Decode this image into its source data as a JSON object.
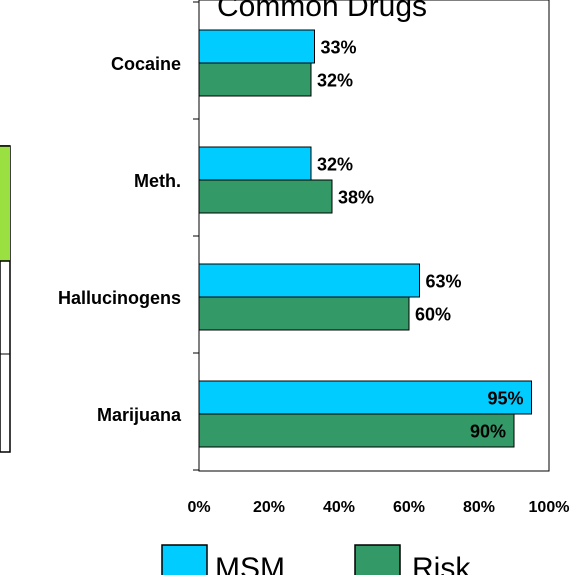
{
  "chart_data": {
    "type": "bar",
    "orientation": "horizontal",
    "title": "Common Drugs",
    "categories": [
      "Cocaine",
      "Meth.",
      "Hallucinogens",
      "Marijuana"
    ],
    "series": [
      {
        "name": "MSM",
        "values": [
          33,
          32,
          63,
          95
        ],
        "labels": [
          "33%",
          "32%",
          "63%",
          "95%"
        ]
      },
      {
        "name": "Risk",
        "values": [
          32,
          38,
          60,
          90
        ],
        "labels": [
          "32%",
          "38%",
          "60%",
          "90%"
        ]
      }
    ],
    "xlim": [
      0,
      100
    ],
    "xticks": [
      "0%",
      "20%",
      "40%",
      "60%",
      "80%",
      "100%"
    ],
    "legend_position": "bottom",
    "grid": false,
    "colors": {
      "MSM": "#00ccff",
      "Risk": "#339966",
      "edge": "#000000"
    }
  }
}
